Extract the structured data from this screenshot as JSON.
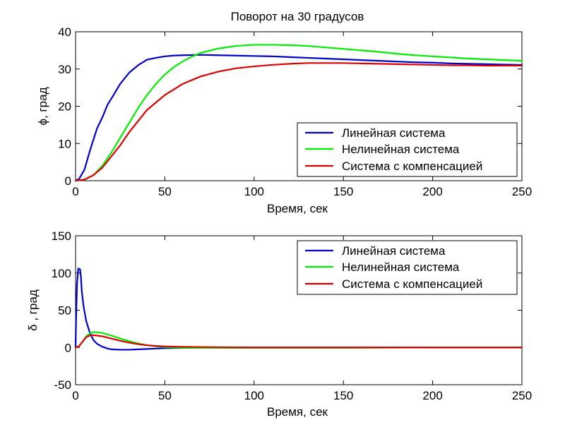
{
  "chart_data": [
    {
      "type": "line",
      "title": "Поворот на 30 градусов",
      "xlabel": "Время, сек",
      "ylabel": "ϕ, град",
      "xlim": [
        0,
        250
      ],
      "ylim": [
        0,
        40
      ],
      "xticks": [
        0,
        50,
        100,
        150,
        200,
        250
      ],
      "yticks": [
        0,
        10,
        20,
        30,
        40
      ],
      "grid": false,
      "legend_position": "bottom-right",
      "series": [
        {
          "name": "Линейная система",
          "color": "#0000cc",
          "x": [
            0,
            2,
            5,
            8,
            10,
            12,
            15,
            18,
            20,
            25,
            30,
            35,
            40,
            45,
            50,
            55,
            60,
            70,
            80,
            90,
            100,
            110,
            120,
            130,
            140,
            150,
            160,
            170,
            180,
            190,
            200,
            210,
            220,
            230,
            240,
            250
          ],
          "y": [
            0,
            0.5,
            3,
            8,
            11,
            14,
            17,
            20.5,
            22,
            26,
            29,
            31,
            32.5,
            33,
            33.4,
            33.6,
            33.7,
            33.8,
            33.7,
            33.6,
            33.5,
            33.4,
            33.2,
            33,
            32.8,
            32.6,
            32.4,
            32.2,
            32,
            31.8,
            31.7,
            31.5,
            31.4,
            31.3,
            31.2,
            31.1
          ]
        },
        {
          "name": "Нелинейная система",
          "color": "#00ee00",
          "x": [
            0,
            5,
            10,
            15,
            20,
            25,
            30,
            35,
            40,
            45,
            50,
            55,
            60,
            65,
            70,
            80,
            90,
            100,
            110,
            120,
            130,
            140,
            150,
            160,
            170,
            180,
            190,
            200,
            210,
            220,
            230,
            240,
            250
          ],
          "y": [
            0,
            0.3,
            1.5,
            4,
            7.5,
            11.5,
            15.5,
            19.5,
            23,
            26,
            28.5,
            30.5,
            32,
            33.3,
            34.3,
            35.5,
            36.2,
            36.5,
            36.5,
            36.4,
            36.2,
            35.8,
            35.4,
            35,
            34.6,
            34.1,
            33.7,
            33.4,
            33.1,
            32.8,
            32.6,
            32.4,
            32.2
          ]
        },
        {
          "name": "Система с компенсацией",
          "color": "#dd0000",
          "x": [
            0,
            5,
            10,
            15,
            20,
            25,
            30,
            35,
            40,
            45,
            50,
            55,
            60,
            65,
            70,
            80,
            90,
            100,
            110,
            120,
            130,
            140,
            150,
            160,
            170,
            180,
            190,
            200,
            210,
            220,
            230,
            240,
            250
          ],
          "y": [
            0,
            0.3,
            1.5,
            3.5,
            6.5,
            9.5,
            13,
            16,
            19,
            21,
            23,
            24.5,
            26,
            27,
            28,
            29.3,
            30.2,
            30.7,
            31.1,
            31.4,
            31.6,
            31.6,
            31.6,
            31.5,
            31.4,
            31.3,
            31.2,
            31.1,
            31,
            31,
            30.9,
            30.9,
            30.9
          ]
        }
      ]
    },
    {
      "type": "line",
      "title": "",
      "xlabel": "Время, сек",
      "ylabel": "δ , град",
      "xlim": [
        0,
        250
      ],
      "ylim": [
        -50,
        150
      ],
      "xticks": [
        0,
        50,
        100,
        150,
        200,
        250
      ],
      "yticks": [
        -50,
        0,
        50,
        100,
        150
      ],
      "grid": false,
      "legend_position": "top-right",
      "series": [
        {
          "name": "Линейная система",
          "color": "#0000cc",
          "x": [
            0,
            0.3,
            0.8,
            1.5,
            2.5,
            3,
            3.5,
            4.5,
            6,
            8,
            10,
            12,
            15,
            18,
            20,
            25,
            30,
            35,
            40,
            45,
            50,
            60,
            70,
            80,
            100,
            150,
            200,
            250
          ],
          "y": [
            0,
            40,
            85,
            106,
            105,
            95,
            75,
            55,
            35,
            20,
            10,
            5,
            1,
            -1.5,
            -2.5,
            -3,
            -3,
            -2.5,
            -2,
            -1.5,
            -1,
            -0.5,
            0,
            0,
            0,
            0,
            0,
            0
          ]
        },
        {
          "name": "Нелинейная система",
          "color": "#00ee00",
          "x": [
            0,
            2,
            4,
            6,
            8,
            10,
            12,
            15,
            20,
            25,
            30,
            35,
            40,
            45,
            50,
            60,
            80,
            100,
            150,
            200,
            250
          ],
          "y": [
            0,
            2,
            8,
            15,
            19,
            20.5,
            20.5,
            19.5,
            16,
            12,
            8.5,
            5.5,
            3,
            1.5,
            0.5,
            -0.5,
            -0.5,
            -0.5,
            -0.5,
            0,
            0
          ]
        },
        {
          "name": "Система с компенсацией",
          "color": "#dd0000",
          "x": [
            0,
            2,
            4,
            6,
            8,
            10,
            12,
            15,
            20,
            25,
            30,
            35,
            40,
            45,
            50,
            60,
            80,
            100,
            150,
            200,
            250
          ],
          "y": [
            0,
            2,
            8,
            14,
            16,
            16.5,
            16,
            15,
            12,
            9,
            6.5,
            4.5,
            3,
            2,
            1.5,
            0.8,
            0.3,
            0,
            0,
            0,
            0
          ]
        }
      ]
    }
  ]
}
